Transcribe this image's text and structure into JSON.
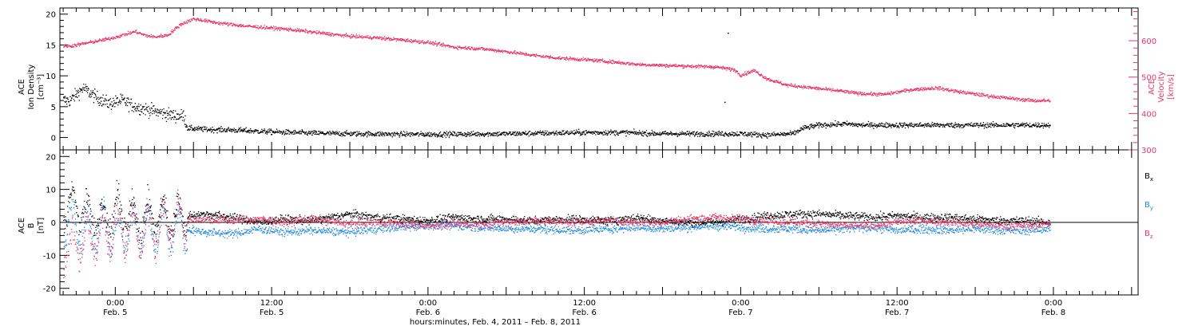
{
  "chart_data": [
    {
      "type": "scatter",
      "panel": "top",
      "left_axis": {
        "label_lines": [
          "ACE",
          "Ion Density",
          "[cm⁻³]"
        ],
        "ylim": [
          -2,
          21
        ],
        "ticks": [
          0,
          5,
          10,
          15,
          20
        ],
        "tick_labels": [
          "0",
          "5",
          "10",
          "15",
          "20"
        ],
        "color": "#000000"
      },
      "right_axis": {
        "label_lines": [
          "ACE",
          "Velocity",
          "[km/s]"
        ],
        "ylim": [
          300,
          690
        ],
        "ticks": [
          300,
          400,
          500,
          600
        ],
        "tick_labels": [
          "300",
          "400",
          "500",
          "600"
        ],
        "color": "#e8386a"
      },
      "series": [
        {
          "key": "density",
          "axis": "left",
          "color": "#000000",
          "keypoints": [
            [
              -7,
              6
            ],
            [
              -5,
              8
            ],
            [
              -3,
              6.5
            ],
            [
              -1,
              5.5
            ],
            [
              1,
              6
            ],
            [
              3,
              5
            ],
            [
              5,
              4.5
            ],
            [
              7,
              4
            ],
            [
              9,
              3.5
            ],
            [
              10.5,
              3.5
            ],
            [
              11,
              1.5
            ],
            [
              14,
              1.3
            ],
            [
              18,
              1.2
            ],
            [
              24,
              0.9
            ],
            [
              30,
              0.7
            ],
            [
              36,
              0.6
            ],
            [
              48,
              0.5
            ],
            [
              60,
              0.6
            ],
            [
              72,
              0.8
            ],
            [
              78,
              0.8
            ],
            [
              84,
              0.6
            ],
            [
              90,
              0.6
            ],
            [
              96,
              0.6
            ],
            [
              100,
              0.4
            ],
            [
              104,
              0.6
            ],
            [
              105.5,
              1.5
            ],
            [
              108,
              2
            ],
            [
              112,
              2.2
            ],
            [
              114.5,
              2
            ]
          ],
          "noise": 0.45
        },
        {
          "key": "velocity",
          "axis": "right",
          "color": "#e8386a",
          "keypoints": [
            [
              -7,
              585
            ],
            [
              -4,
              595
            ],
            [
              -1,
              605
            ],
            [
              1,
              615
            ],
            [
              3,
              625
            ],
            [
              4.5,
              615
            ],
            [
              6,
              610
            ],
            [
              8,
              615
            ],
            [
              10,
              645
            ],
            [
              12,
              660
            ],
            [
              16,
              648
            ],
            [
              20,
              640
            ],
            [
              26,
              632
            ],
            [
              32,
              620
            ],
            [
              36,
              612
            ],
            [
              40,
              608
            ],
            [
              44,
              602
            ],
            [
              48,
              595
            ],
            [
              52,
              582
            ],
            [
              56,
              578
            ],
            [
              60,
              570
            ],
            [
              64,
              560
            ],
            [
              68,
              552
            ],
            [
              72,
              548
            ],
            [
              76,
              542
            ],
            [
              80,
              535
            ],
            [
              84,
              532
            ],
            [
              88,
              530
            ],
            [
              92,
              528
            ],
            [
              95,
              520
            ],
            [
              96,
              505
            ],
            [
              98,
              518
            ],
            [
              100,
              495
            ],
            [
              103,
              478
            ],
            [
              107,
              470
            ],
            [
              111,
              462
            ],
            [
              114,
              455
            ],
            [
              118,
              452
            ],
            [
              122,
              465
            ],
            [
              126,
              470
            ],
            [
              130,
              458
            ],
            [
              134,
              448
            ],
            [
              138,
              440
            ],
            [
              141,
              435
            ],
            [
              143,
              435
            ]
          ],
          "noise": 5
        }
      ],
      "outliers": [
        [
          94,
          17
        ],
        [
          93.5,
          5.8
        ]
      ]
    },
    {
      "type": "scatter",
      "panel": "bottom",
      "left_axis": {
        "label_lines": [
          "ACE",
          "B",
          "[nT]"
        ],
        "ylim": [
          -22,
          22
        ],
        "ticks": [
          -20,
          -10,
          0,
          10,
          20
        ],
        "tick_labels": [
          "-20",
          "-10",
          "0",
          "10",
          "20"
        ]
      },
      "zero_line": true,
      "legend": [
        {
          "main": "B",
          "sub": "x",
          "color": "#000000"
        },
        {
          "main": "B",
          "sub": "y",
          "color": "#1e88e5"
        },
        {
          "main": "B",
          "sub": "z",
          "color": "#e8386a"
        }
      ],
      "series": [
        {
          "key": "bx",
          "color": "#000000",
          "keypoints": [
            [
              -7,
              5
            ],
            [
              -4,
              3
            ],
            [
              -2,
              0
            ],
            [
              0,
              4
            ],
            [
              3,
              1
            ],
            [
              6,
              2
            ],
            [
              10,
              2
            ],
            [
              14,
              2.5
            ],
            [
              18,
              1.5
            ],
            [
              22,
              0
            ],
            [
              26,
              1
            ],
            [
              30,
              0.5
            ],
            [
              36,
              2.5
            ],
            [
              40,
              1.5
            ],
            [
              44,
              1
            ],
            [
              48,
              0.5
            ],
            [
              52,
              1.5
            ],
            [
              56,
              1
            ],
            [
              60,
              1
            ],
            [
              64,
              0.5
            ],
            [
              70,
              1
            ],
            [
              76,
              0.5
            ],
            [
              80,
              1.5
            ],
            [
              84,
              0.5
            ],
            [
              88,
              0
            ],
            [
              92,
              0
            ],
            [
              96,
              1
            ],
            [
              100,
              2
            ],
            [
              104,
              2.5
            ],
            [
              108,
              2.5
            ],
            [
              112,
              2
            ],
            [
              116,
              1.5
            ],
            [
              120,
              2
            ],
            [
              124,
              1.5
            ],
            [
              128,
              1.5
            ],
            [
              132,
              1
            ],
            [
              136,
              0.5
            ],
            [
              140,
              0.5
            ],
            [
              143,
              0
            ]
          ],
          "noise": 1.3,
          "storm_amp": 5
        },
        {
          "key": "by",
          "color": "#1e88e5",
          "keypoints": [
            [
              -7,
              0
            ],
            [
              -4,
              -3
            ],
            [
              -2,
              -1
            ],
            [
              0,
              -4
            ],
            [
              3,
              -2
            ],
            [
              6,
              -3
            ],
            [
              10,
              -2
            ],
            [
              14,
              -3
            ],
            [
              18,
              -3.5
            ],
            [
              22,
              -2
            ],
            [
              26,
              -3
            ],
            [
              30,
              -2.5
            ],
            [
              36,
              -3
            ],
            [
              40,
              -2
            ],
            [
              44,
              -1.5
            ],
            [
              48,
              -1
            ],
            [
              52,
              -1
            ],
            [
              56,
              -1.5
            ],
            [
              60,
              -2
            ],
            [
              64,
              -2
            ],
            [
              70,
              -2.5
            ],
            [
              76,
              -2
            ],
            [
              80,
              -1.5
            ],
            [
              84,
              -2
            ],
            [
              88,
              -1.5
            ],
            [
              92,
              -1
            ],
            [
              96,
              -1.5
            ],
            [
              100,
              -2
            ],
            [
              104,
              -2
            ],
            [
              108,
              -2.5
            ],
            [
              112,
              -2
            ],
            [
              116,
              -1.5
            ],
            [
              120,
              -2.5
            ],
            [
              124,
              -2
            ],
            [
              128,
              -2.5
            ],
            [
              132,
              -2
            ],
            [
              136,
              -2.5
            ],
            [
              140,
              -2.5
            ],
            [
              143,
              -2
            ]
          ],
          "noise": 1.3,
          "storm_amp": 6
        },
        {
          "key": "bz",
          "color": "#e8386a",
          "keypoints": [
            [
              -7,
              -8
            ],
            [
              -4,
              -5
            ],
            [
              -2,
              -4
            ],
            [
              0,
              -2
            ],
            [
              3,
              -3
            ],
            [
              6,
              -2
            ],
            [
              10,
              0.5
            ],
            [
              14,
              1
            ],
            [
              18,
              0.5
            ],
            [
              22,
              1
            ],
            [
              26,
              0
            ],
            [
              30,
              1
            ],
            [
              36,
              -0.5
            ],
            [
              40,
              0
            ],
            [
              44,
              -0.5
            ],
            [
              48,
              -1
            ],
            [
              52,
              -0.5
            ],
            [
              56,
              -0.5
            ],
            [
              60,
              0
            ],
            [
              64,
              0.5
            ],
            [
              70,
              0
            ],
            [
              76,
              0.5
            ],
            [
              80,
              0
            ],
            [
              84,
              0
            ],
            [
              88,
              1
            ],
            [
              92,
              1.5
            ],
            [
              96,
              1
            ],
            [
              100,
              0.5
            ],
            [
              104,
              0
            ],
            [
              108,
              -0.5
            ],
            [
              112,
              -1
            ],
            [
              116,
              -1
            ],
            [
              120,
              0
            ],
            [
              124,
              0.5
            ],
            [
              128,
              0
            ],
            [
              132,
              -0.5
            ],
            [
              136,
              -1
            ],
            [
              140,
              -1
            ],
            [
              143,
              -0.5
            ]
          ],
          "noise": 1.3,
          "storm_amp": 6
        }
      ]
    }
  ],
  "x_axis": {
    "xlim": [
      -8.5,
      157
    ],
    "data_end": 143.5,
    "ticks": [
      {
        "hour": 0,
        "time": "0:00",
        "date": "Feb. 5"
      },
      {
        "hour": 24,
        "time": "12:00",
        "date": "Feb. 5"
      },
      {
        "hour": 48,
        "time": "0:00",
        "date": "Feb. 6"
      },
      {
        "hour": 72,
        "time": "12:00",
        "date": "Feb. 6"
      },
      {
        "hour": 96,
        "time": "0:00",
        "date": "Feb. 7"
      },
      {
        "hour": 120,
        "time": "12:00",
        "date": "Feb. 7"
      },
      {
        "hour": 144,
        "time": "0:00",
        "date": "Feb. 8"
      }
    ],
    "title": "hours:minutes, Feb.  4, 2011 – Feb.  8, 2011"
  }
}
